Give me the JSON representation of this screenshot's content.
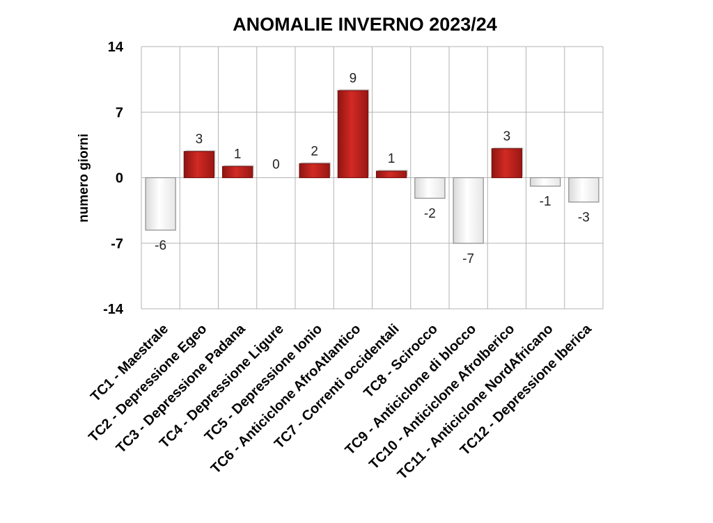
{
  "chart_data": {
    "type": "bar",
    "title": "ANOMALIE INVERNO 2023/24",
    "xlabel": "",
    "ylabel": "numero giorni",
    "ylim": [
      -14,
      14
    ],
    "yticks": [
      "14",
      "7",
      "0",
      "-7",
      "-14"
    ],
    "grid": true,
    "legend": "none",
    "categories": [
      "TC1 - Maestrale",
      "TC2 - Depressione Egeo",
      "TC3 - Depressione Padana",
      "TC4 - Depressione Ligure",
      "TC5 - Depressione Ionio",
      "TC6 - Anticiclone AfroAtlantico",
      "TC7 - Correnti occidentali",
      "TC8 - Scirocco",
      "TC9 - Anticiclone di blocco",
      "TC10 - Anticiclone AfroIberico",
      "TC11 - Anticiclone NordAfricano",
      "TC12 - Depressione Iberica"
    ],
    "values": [
      -5.6,
      2.8,
      1.2,
      0,
      1.5,
      9.3,
      0.7,
      -2.2,
      -7.0,
      3.1,
      -0.9,
      -2.6
    ],
    "data_labels": [
      "-6",
      "3",
      "1",
      "0",
      "2",
      "9",
      "1",
      "-2",
      "-7",
      "3",
      "-1",
      "-3"
    ],
    "colors": {
      "positive": "#c0201c",
      "negative": "#ffffff",
      "negative_border": "#8c8c8c"
    }
  }
}
